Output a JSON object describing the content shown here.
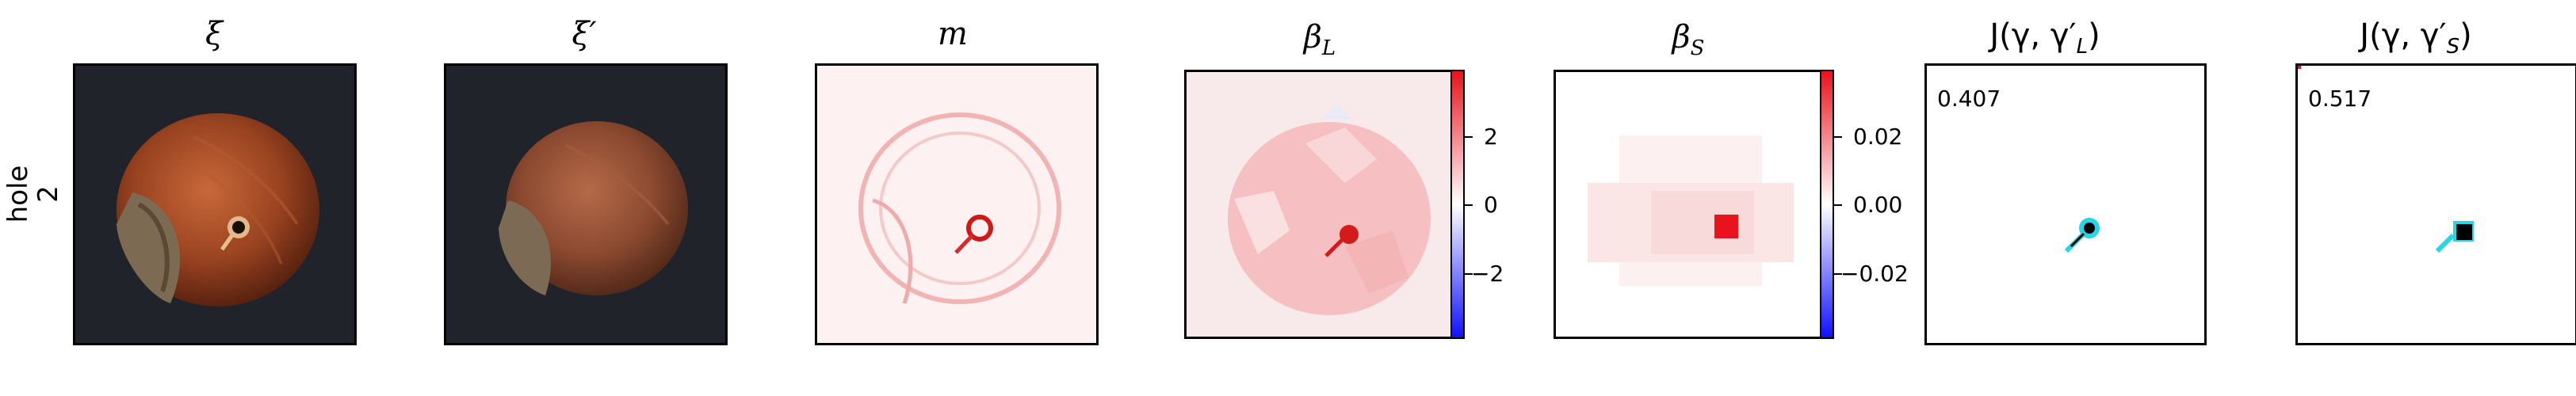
{
  "row_label": {
    "name": "hole",
    "index": "2"
  },
  "panels": [
    {
      "id": "xi",
      "title": "ξ"
    },
    {
      "id": "xi_prime",
      "title": "ξ′"
    },
    {
      "id": "m",
      "title": "m"
    },
    {
      "id": "beta_L",
      "title": "β",
      "subscript": "L"
    },
    {
      "id": "beta_S",
      "title": "β",
      "subscript": "S"
    },
    {
      "id": "J_L",
      "title_prefix": "J(γ, γ′",
      "subscript": "L",
      "title_suffix": ")",
      "score": "0.407"
    },
    {
      "id": "J_S",
      "title_prefix": "J(γ, γ′",
      "subscript": "S",
      "title_suffix": ")",
      "score": "0.517"
    }
  ],
  "colorbars": {
    "beta_L": {
      "ticks": [
        "2",
        "0",
        "−2"
      ]
    },
    "beta_S": {
      "ticks": [
        "0.02",
        "0.00",
        "−0.02"
      ]
    }
  },
  "colors": {
    "positive": "#e8131c",
    "negative": "#1010ff",
    "neutral": "#ffffff",
    "cyan": "#27d6e6"
  }
}
